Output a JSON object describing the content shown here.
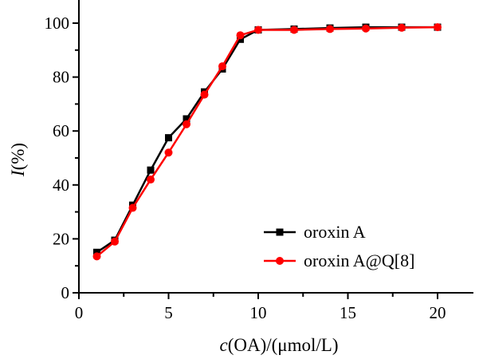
{
  "chart_data": {
    "type": "line",
    "title": "",
    "xlabel_italic": "c",
    "xlabel_rest": "(OA)/(μmol/L)",
    "ylabel_italic": "I",
    "ylabel_rest": "(%)",
    "xlim": [
      0,
      22
    ],
    "ylim": [
      0,
      110
    ],
    "xticks": [
      0,
      5,
      10,
      15,
      20
    ],
    "yticks": [
      0,
      20,
      40,
      60,
      80,
      100
    ],
    "grid": false,
    "legend_position": "bottom-right",
    "x": [
      1,
      2,
      3,
      4,
      5,
      6,
      7,
      8,
      9,
      10,
      12,
      14,
      16,
      18,
      20
    ],
    "series": [
      {
        "name": "oroxin A",
        "color": "#000000",
        "marker": "square",
        "values": [
          15,
          19.5,
          32.5,
          45.5,
          57.5,
          64.5,
          74.5,
          83,
          94,
          97.5,
          97.8,
          98.2,
          98.5,
          98.5,
          98.5
        ]
      },
      {
        "name": "oroxin A@Q[8]",
        "color": "#ff0000",
        "marker": "circle",
        "values": [
          13.5,
          19,
          31.5,
          42,
          52,
          62.5,
          73.5,
          84,
          95.5,
          97.5,
          97.5,
          97.8,
          98,
          98.3,
          98.5
        ]
      }
    ]
  }
}
